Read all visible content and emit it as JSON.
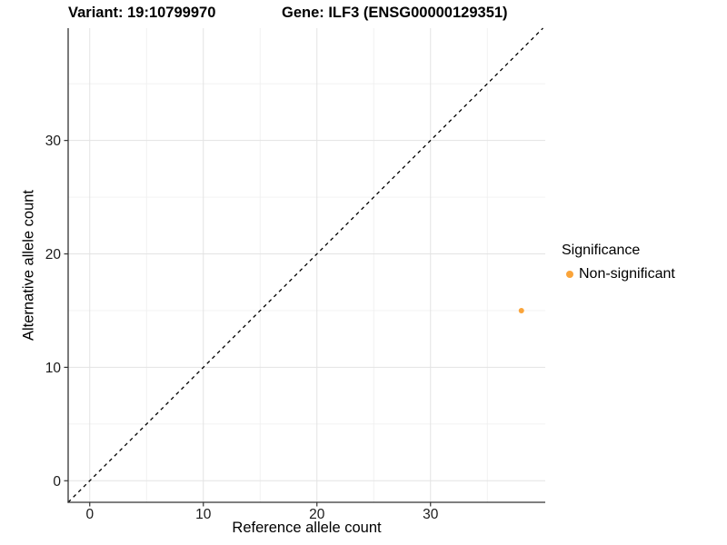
{
  "chart_data": {
    "type": "scatter",
    "titles": {
      "left": "Variant: 19:10799970",
      "right": "Gene: ILF3 (ENSG00000129351)"
    },
    "xlabel": "Reference allele count",
    "ylabel": "Alternative allele count",
    "xlim": [
      -1.9,
      40.1
    ],
    "ylim": [
      -1.9,
      39.9
    ],
    "xticks": [
      0,
      10,
      20,
      30
    ],
    "yticks": [
      0,
      10,
      20,
      30
    ],
    "xminor": [
      5,
      15,
      25,
      35
    ],
    "yminor": [
      5,
      15,
      25,
      35
    ],
    "grid": true,
    "identity_line": {
      "style": "dashed",
      "from": -1.9,
      "to": 39.9,
      "color": "#000000"
    },
    "points": [
      {
        "x": 38,
        "y": 15,
        "series": "Non-significant",
        "color": "#FAA43A",
        "radius": 3
      }
    ],
    "legend": {
      "title": "Significance",
      "position": "right",
      "items": [
        {
          "label": "Non-significant",
          "color": "#FAA43A"
        }
      ]
    },
    "colors": {
      "background": "#FFFFFF",
      "grid_major": "#E3E3E3",
      "grid_minor": "#F0F0F0",
      "axis_line": "#333333",
      "tick_mark": "#333333",
      "tick_text": "#1A1A1A"
    }
  }
}
